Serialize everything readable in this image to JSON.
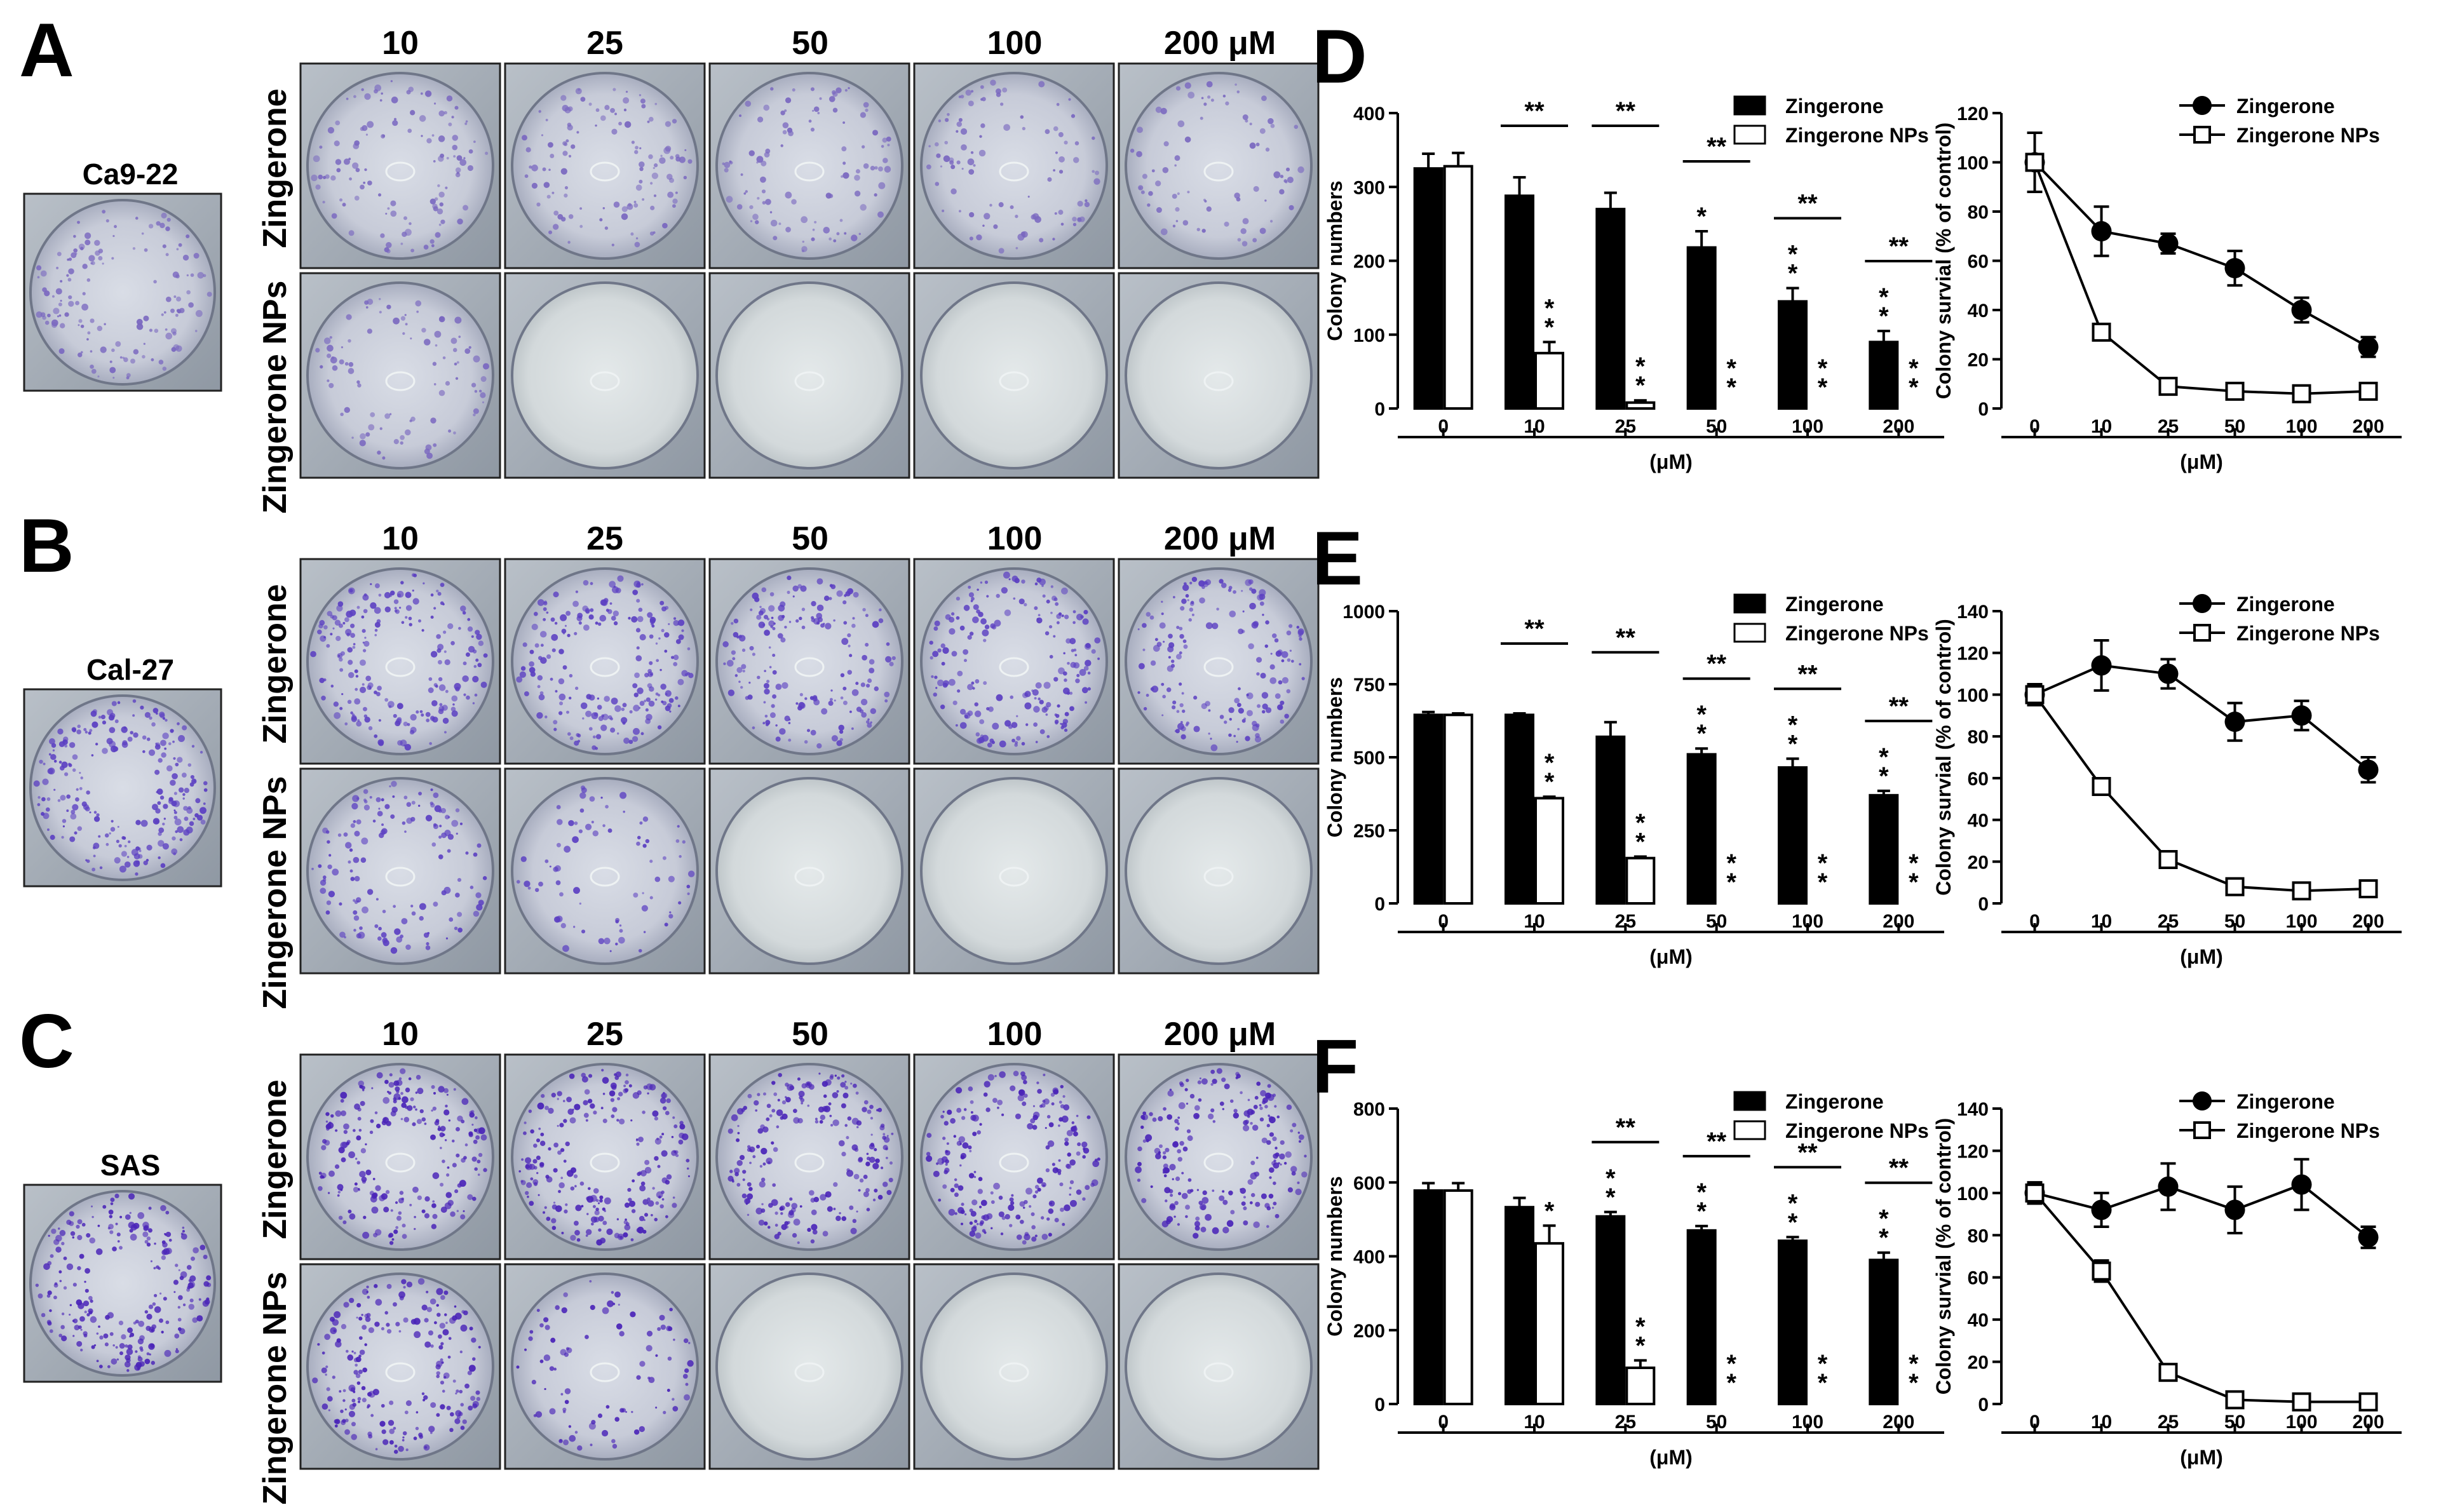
{
  "photo_rows": [
    {
      "letter": "A",
      "control_label": "Ca9-22",
      "row_labels": [
        "Zingerone",
        "Zingerone NPs"
      ],
      "concentrations": [
        "10",
        "25",
        "50",
        "100",
        "200  μM"
      ],
      "stain": "light",
      "np_density": [
        0.35,
        0.05,
        0.02,
        0.02,
        0.02
      ],
      "free_density": [
        0.45,
        0.45,
        0.4,
        0.38,
        0.3
      ]
    },
    {
      "letter": "B",
      "control_label": "Cal-27",
      "row_labels": [
        "Zingerone",
        "Zingerone NPs"
      ],
      "concentrations": [
        "10",
        "25",
        "50",
        "100",
        "200  μM"
      ],
      "stain": "medium",
      "np_density": [
        0.55,
        0.3,
        0.02,
        0.02,
        0.02
      ],
      "free_density": [
        0.8,
        0.8,
        0.7,
        0.75,
        0.65
      ]
    },
    {
      "letter": "C",
      "control_label": "SAS",
      "row_labels": [
        "Zingerone",
        "Zingerone NPs"
      ],
      "concentrations": [
        "10",
        "25",
        "50",
        "100",
        "200  μM"
      ],
      "stain": "dark",
      "np_density": [
        0.8,
        0.35,
        0.02,
        0.02,
        0.02
      ],
      "free_density": [
        0.85,
        0.9,
        0.85,
        0.85,
        0.8
      ]
    }
  ],
  "chart_data": [
    {
      "letter": "D",
      "type": "bar",
      "categories": [
        "0",
        "10",
        "25",
        "50",
        "100",
        "200"
      ],
      "xlabel": "(μM)",
      "ylabel": "Colony numbers",
      "ylim": [
        0,
        400
      ],
      "yticks": [
        0,
        100,
        200,
        300,
        400
      ],
      "series": [
        {
          "name": "Zingerone",
          "values": [
            325,
            288,
            270,
            218,
            145,
            90
          ],
          "errors": [
            20,
            25,
            22,
            22,
            18,
            15
          ],
          "color": "#000000"
        },
        {
          "name": "Zingerone NPs",
          "values": [
            328,
            75,
            8,
            0,
            0,
            0
          ],
          "errors": [
            18,
            15,
            3,
            0,
            0,
            0
          ],
          "color": "#ffffff"
        }
      ],
      "within_stars": {
        "Zingerone": [
          "",
          "",
          "",
          "*",
          "**",
          "**"
        ],
        "Zingerone NPs": [
          "",
          "**",
          "**",
          "**",
          "**",
          "**"
        ]
      },
      "pair_stars": [
        "",
        "**",
        "**",
        "**",
        "**",
        "**"
      ],
      "legend_position": "top-right"
    },
    {
      "letter": "D",
      "type": "line",
      "categories": [
        "0",
        "10",
        "25",
        "50",
        "100",
        "200"
      ],
      "xlabel": "(μM)",
      "ylabel": "Colony survial (% of control)",
      "ylim": [
        0,
        120
      ],
      "yticks": [
        0,
        20,
        40,
        60,
        80,
        100,
        120
      ],
      "series": [
        {
          "name": "Zingerone",
          "values": [
            100,
            72,
            67,
            57,
            40,
            25
          ],
          "errors": [
            12,
            10,
            4,
            7,
            5,
            4
          ],
          "marker": "filled-circle"
        },
        {
          "name": "Zingerone NPs",
          "values": [
            100,
            31,
            9,
            7,
            6,
            7
          ],
          "errors": [
            12,
            3,
            1,
            1,
            1,
            1
          ],
          "marker": "open-square"
        }
      ],
      "legend_position": "top-right"
    },
    {
      "letter": "E",
      "type": "bar",
      "categories": [
        "0",
        "10",
        "25",
        "50",
        "100",
        "200"
      ],
      "xlabel": "(μM)",
      "ylabel": "Colony numbers",
      "ylim": [
        0,
        1000
      ],
      "yticks": [
        0,
        250,
        500,
        750,
        1000
      ],
      "series": [
        {
          "name": "Zingerone",
          "values": [
            645,
            645,
            570,
            510,
            465,
            370
          ],
          "errors": [
            10,
            5,
            50,
            20,
            30,
            15
          ],
          "color": "#000000"
        },
        {
          "name": "Zingerone NPs",
          "values": [
            645,
            360,
            155,
            0,
            0,
            0
          ],
          "errors": [
            5,
            5,
            5,
            0,
            0,
            0
          ],
          "color": "#ffffff"
        }
      ],
      "within_stars": {
        "Zingerone": [
          "",
          "",
          "",
          "**",
          "**",
          "**"
        ],
        "Zingerone NPs": [
          "",
          "**",
          "**",
          "**",
          "**",
          "**"
        ]
      },
      "pair_stars": [
        "",
        "**",
        "**",
        "**",
        "**",
        "**"
      ],
      "legend_position": "top-right"
    },
    {
      "letter": "E",
      "type": "line",
      "categories": [
        "0",
        "10",
        "25",
        "50",
        "100",
        "200"
      ],
      "xlabel": "(μM)",
      "ylabel": "Colony survial (% of control)",
      "ylim": [
        0,
        140
      ],
      "yticks": [
        0,
        20,
        40,
        60,
        80,
        100,
        120,
        140
      ],
      "series": [
        {
          "name": "Zingerone",
          "values": [
            100,
            114,
            110,
            87,
            90,
            64
          ],
          "errors": [
            5,
            12,
            7,
            9,
            7,
            6
          ],
          "marker": "filled-circle"
        },
        {
          "name": "Zingerone NPs",
          "values": [
            100,
            56,
            21,
            8,
            6,
            7
          ],
          "errors": [
            5,
            2,
            2,
            1,
            1,
            1
          ],
          "marker": "open-square"
        }
      ],
      "legend_position": "top-right"
    },
    {
      "letter": "F",
      "type": "bar",
      "categories": [
        "0",
        "10",
        "25",
        "50",
        "100",
        "200"
      ],
      "xlabel": "(μM)",
      "ylabel": "Colony numbers",
      "ylim": [
        0,
        800
      ],
      "yticks": [
        0,
        200,
        400,
        600,
        800
      ],
      "series": [
        {
          "name": "Zingerone",
          "values": [
            578,
            533,
            508,
            470,
            442,
            390
          ],
          "errors": [
            20,
            25,
            12,
            12,
            10,
            20
          ],
          "color": "#000000"
        },
        {
          "name": "Zingerone NPs",
          "values": [
            578,
            435,
            98,
            0,
            0,
            0
          ],
          "errors": [
            20,
            48,
            20,
            0,
            0,
            0
          ],
          "color": "#ffffff"
        }
      ],
      "within_stars": {
        "Zingerone": [
          "",
          "",
          "**",
          "**",
          "**",
          "**"
        ],
        "Zingerone NPs": [
          "",
          "*",
          "**",
          "**",
          "**",
          "**"
        ]
      },
      "pair_stars": [
        "",
        "",
        "**",
        "**",
        "**",
        "**"
      ],
      "legend_position": "top-right"
    },
    {
      "letter": "F",
      "type": "line",
      "categories": [
        "0",
        "10",
        "25",
        "50",
        "100",
        "200"
      ],
      "xlabel": "(μM)",
      "ylabel": "Colony survial (% of control)",
      "ylim": [
        0,
        140
      ],
      "yticks": [
        0,
        20,
        40,
        60,
        80,
        100,
        120,
        140
      ],
      "series": [
        {
          "name": "Zingerone",
          "values": [
            100,
            92,
            103,
            92,
            104,
            79
          ],
          "errors": [
            5,
            8,
            11,
            11,
            12,
            5
          ],
          "marker": "filled-circle"
        },
        {
          "name": "Zingerone NPs",
          "values": [
            100,
            63,
            15,
            2,
            1,
            1
          ],
          "errors": [
            5,
            5,
            1,
            1,
            1,
            1
          ],
          "marker": "open-square"
        }
      ],
      "legend_position": "top-right"
    }
  ]
}
